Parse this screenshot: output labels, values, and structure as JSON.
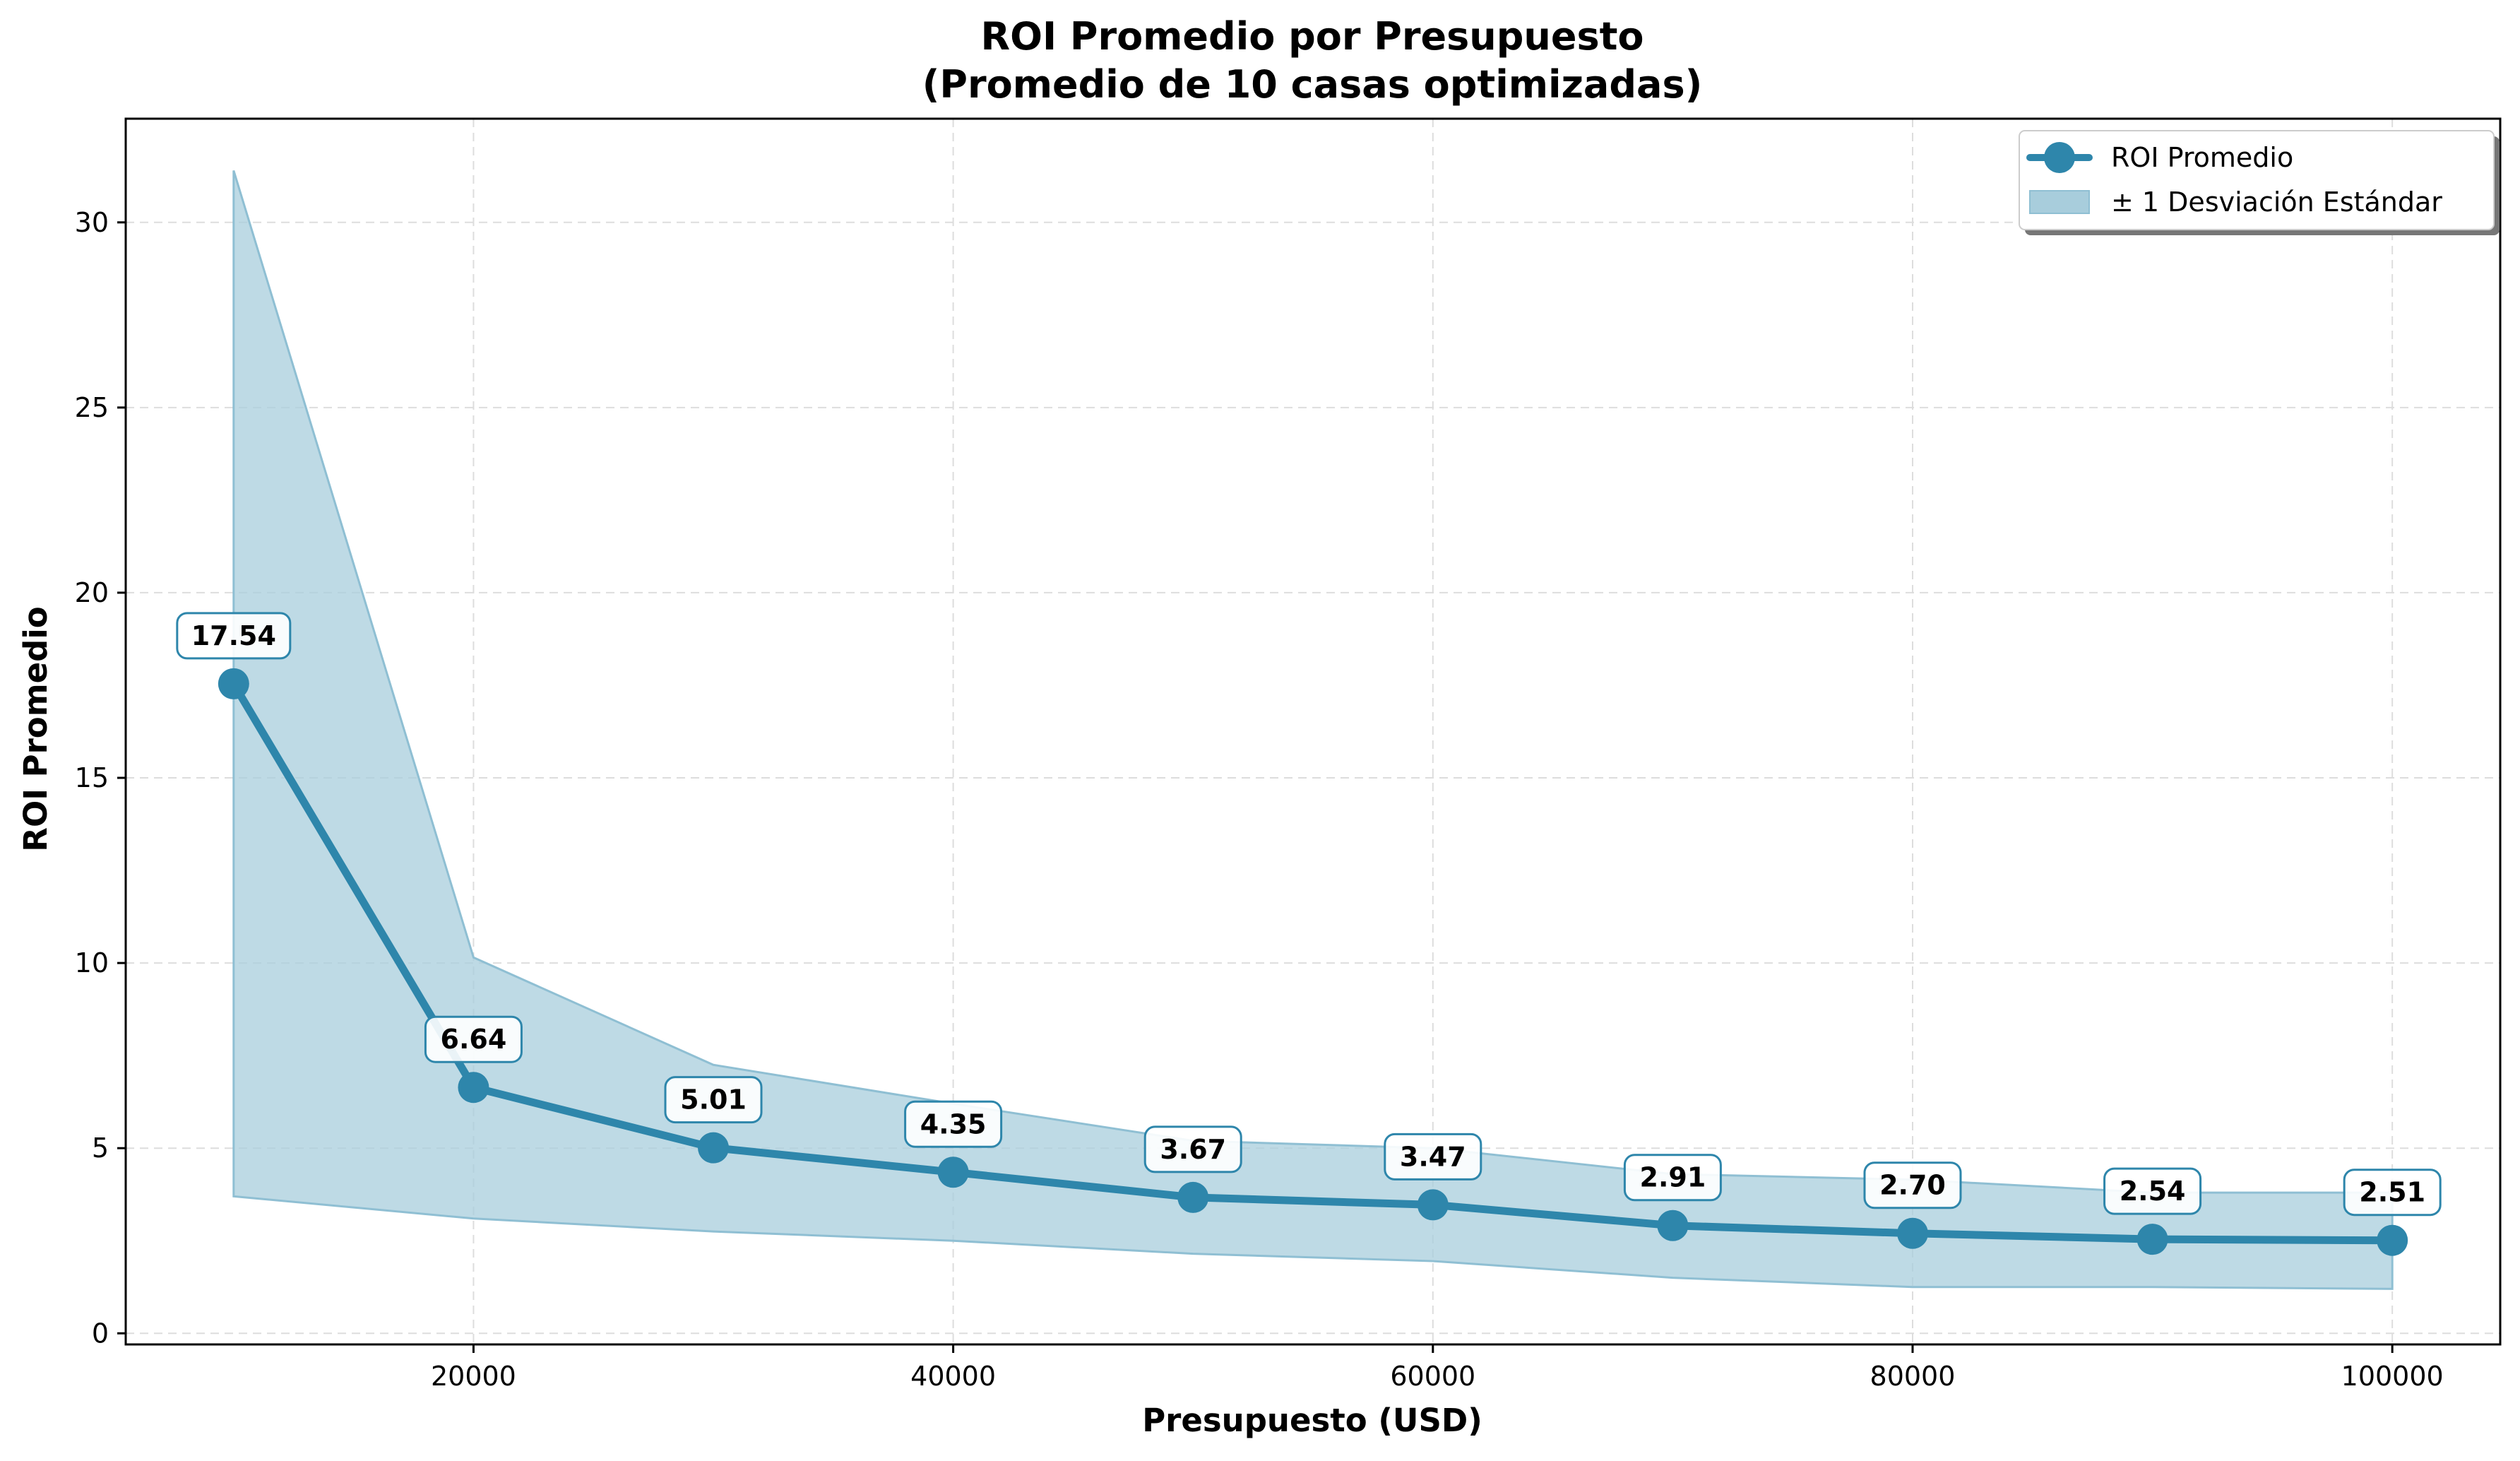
{
  "colors": {
    "line": "#2e86ab",
    "band_fill": "#a8cddc",
    "band_edge": "#8fbfd3",
    "grid": "#dddddd"
  },
  "chart_data": {
    "type": "line",
    "title": "ROI Promedio por Presupuesto",
    "subtitle": "(Promedio de 10 casas optimizadas)",
    "xlabel": "Presupuesto (USD)",
    "ylabel": "ROI Promedio",
    "xlim": [
      5500,
      104500
    ],
    "ylim": [
      -0.3,
      32.8
    ],
    "xticks": [
      20000,
      40000,
      60000,
      80000,
      100000
    ],
    "xtick_labels": [
      "20000",
      "40000",
      "60000",
      "80000",
      "100000"
    ],
    "yticks": [
      0,
      5,
      10,
      15,
      20,
      25,
      30
    ],
    "ytick_labels": [
      "0",
      "5",
      "10",
      "15",
      "20",
      "25",
      "30"
    ],
    "grid": true,
    "legend_position": "top-right",
    "x": [
      10000,
      20000,
      30000,
      40000,
      50000,
      60000,
      70000,
      80000,
      90000,
      100000
    ],
    "series": [
      {
        "name": "ROI Promedio",
        "values": [
          17.54,
          6.64,
          5.01,
          4.35,
          3.67,
          3.47,
          2.91,
          2.7,
          2.54,
          2.51
        ],
        "labels": [
          "17.54",
          "6.64",
          "5.01",
          "4.35",
          "3.67",
          "3.47",
          "2.91",
          "2.70",
          "2.54",
          "2.51"
        ]
      }
    ],
    "band": {
      "name": "± 1 Desviación Estándar",
      "upper": [
        31.4,
        10.15,
        7.25,
        6.2,
        5.2,
        5.0,
        4.3,
        4.15,
        3.8,
        3.8
      ],
      "lower": [
        3.7,
        3.1,
        2.75,
        2.5,
        2.15,
        1.95,
        1.5,
        1.25,
        1.25,
        1.2
      ]
    }
  }
}
